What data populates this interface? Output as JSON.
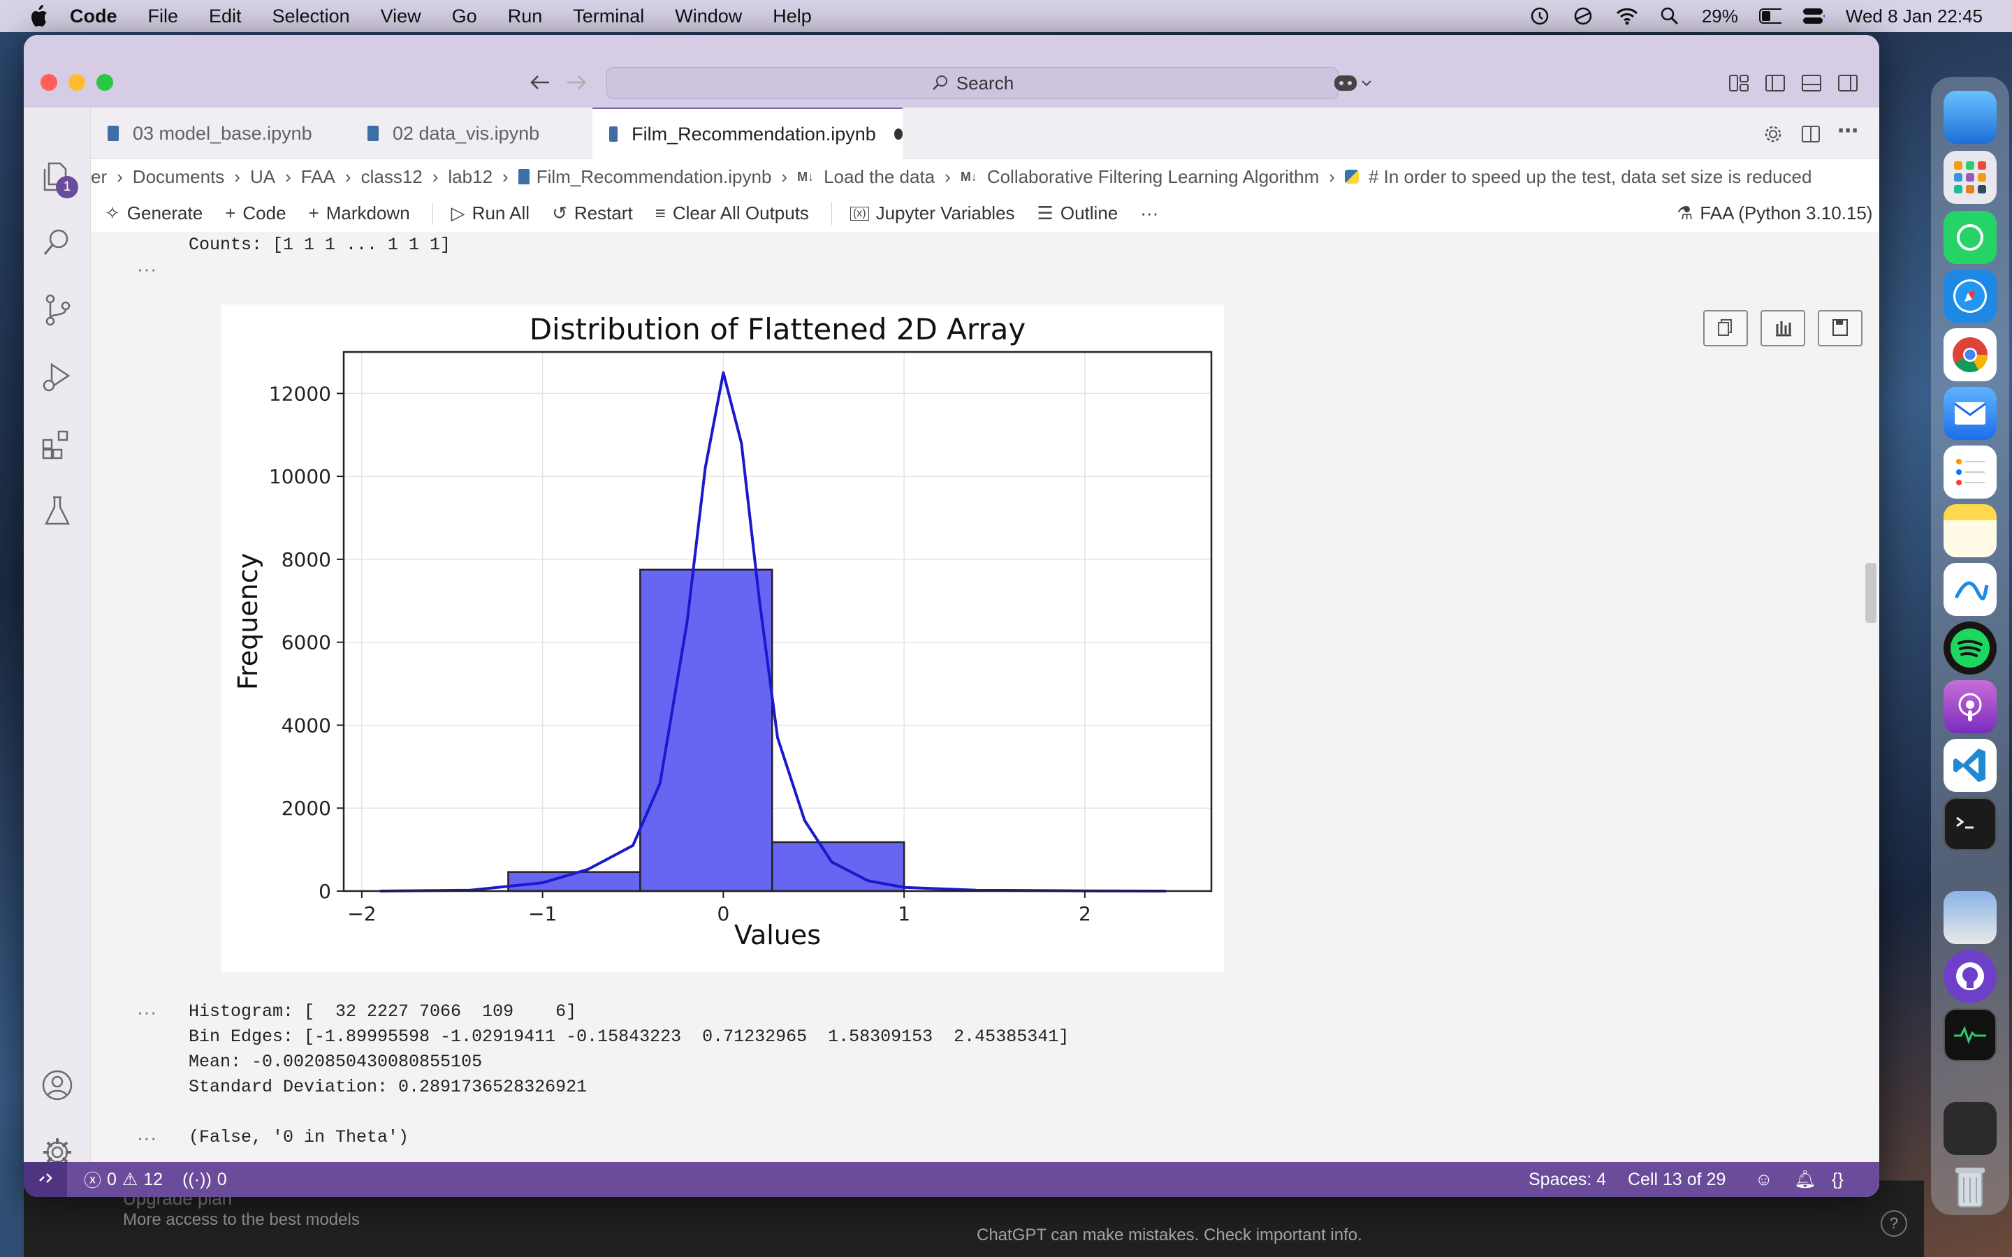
{
  "menubar": {
    "app": "Code",
    "items": [
      "File",
      "Edit",
      "Selection",
      "View",
      "Go",
      "Run",
      "Terminal",
      "Window",
      "Help"
    ],
    "battery": "29%",
    "datetime": "Wed 8 Jan  22:45"
  },
  "titlebar": {
    "search": "Search"
  },
  "tabs": [
    {
      "label": "03 model_base.ipynb"
    },
    {
      "label": "02 data_vis.ipynb"
    },
    {
      "label": "Film_Recommendation.ipynb",
      "active": true,
      "dirty": true
    }
  ],
  "activity_badge": "1",
  "breadcrumb": [
    "er",
    "Documents",
    "UA",
    "FAA",
    "class12",
    "lab12",
    "Film_Recommendation.ipynb",
    "Load the data",
    "Collaborative Filtering Learning Algorithm",
    "# In order to speed up the test, data set size is reduced"
  ],
  "toolbar": {
    "generate": "Generate",
    "code": "Code",
    "markdown": "Markdown",
    "run_all": "Run All",
    "restart": "Restart",
    "clear": "Clear All Outputs",
    "variables": "Jupyter Variables",
    "outline": "Outline",
    "more": "···",
    "kernel": "FAA (Python 3.10.15)"
  },
  "output": {
    "counts": "Counts: [1 1 1 ... 1 1 1]",
    "ellipsis": "···",
    "histogram": "Histogram: [  32 2227 7066  109    6]",
    "bin_edges": "Bin Edges: [-1.89995598 -1.02919411 -0.15843223  0.71232965  1.58309153  2.45385341]",
    "mean": "Mean: -0.0020850430080855105",
    "std": "Standard Deviation: 0.2891736528326921",
    "result": "(False, '0 in Theta')"
  },
  "chart_data": {
    "type": "bar",
    "title": "Distribution of Flattened 2D Array",
    "xlabel": "Values",
    "ylabel": "Frequency",
    "bin_edges": [
      -1.19,
      -0.46,
      0.27,
      1.0
    ],
    "values": [
      460,
      7750,
      1180
    ],
    "kde": [
      [
        -1.9,
        0
      ],
      [
        -1.4,
        20
      ],
      [
        -1.0,
        200
      ],
      [
        -0.75,
        520
      ],
      [
        -0.5,
        1100
      ],
      [
        -0.35,
        2600
      ],
      [
        -0.2,
        6500
      ],
      [
        -0.1,
        10200
      ],
      [
        0,
        12500
      ],
      [
        0.1,
        10800
      ],
      [
        0.2,
        7000
      ],
      [
        0.3,
        3700
      ],
      [
        0.45,
        1700
      ],
      [
        0.6,
        700
      ],
      [
        0.8,
        250
      ],
      [
        1.0,
        90
      ],
      [
        1.4,
        20
      ],
      [
        2.0,
        5
      ],
      [
        2.45,
        0
      ]
    ],
    "xticks": [
      -2,
      -1,
      0,
      1,
      2
    ],
    "xtick_labels": [
      "−2",
      "−1",
      "0",
      "1",
      "2"
    ],
    "yticks": [
      0,
      2000,
      4000,
      6000,
      8000,
      10000,
      12000
    ],
    "xlim": [
      -2.1,
      2.7
    ],
    "ylim": [
      0,
      13000
    ],
    "bar_color": "#6666f2",
    "line_color": "#1a1acc",
    "grid": true
  },
  "statusbar": {
    "errors": "0",
    "warnings": "12",
    "ports": "0",
    "spaces": "Spaces: 4",
    "cell": "Cell 13 of 29"
  },
  "chatgpt": {
    "upgrade": "Upgrade plan",
    "upgrade_sub": "More access to the best models",
    "disclaimer": "ChatGPT can make mistakes. Check important info.",
    "help": "?"
  }
}
